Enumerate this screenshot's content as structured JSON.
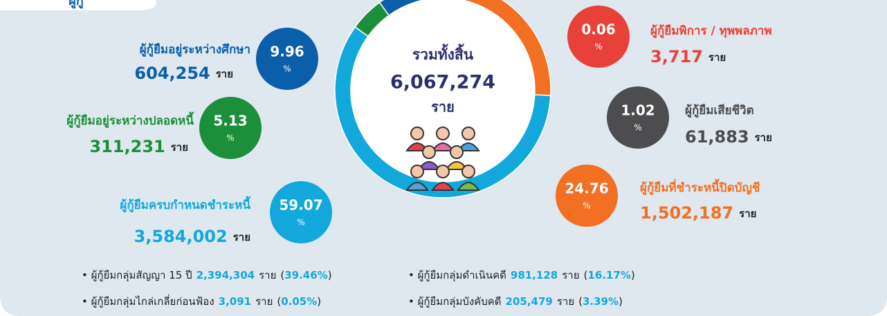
{
  "header": {
    "tab": "ผู้กู้"
  },
  "chart_data": {
    "type": "donut",
    "center_title": "รวมทั้งสิ้น",
    "total": "6,067,274",
    "unit": "ราย",
    "percent_sign": "%",
    "categories": [
      "ผู้กู้ยืมพิการ / ทุพพลภาพ",
      "ผู้กู้ยืมเสียชีวิต",
      "ผู้กู้ยืมที่ชำระหนี้ปิดบัญชี",
      "ผู้กู้ยืมครบกำหนดชำระหนี้",
      "ผู้กู้ยืมอยู่ระหว่างปลอดหนี้",
      "ผู้กู้ยืมอยู่ระหว่างศึกษา"
    ],
    "values": [
      0.06,
      1.02,
      24.76,
      59.07,
      5.13,
      9.96
    ],
    "count_labels": [
      "3,717",
      "61,883",
      "1,502,187",
      "3,584,002",
      "311,231",
      "604,254"
    ],
    "colors": [
      "#d7322e",
      "#4d4d4f",
      "#f36f21",
      "#12a8dc",
      "#1b8f3a",
      "#0b5eaa"
    ]
  },
  "notes": [
    {
      "label": "ผู้กู้ยืมกลุ่มสัญญา 15 ปี",
      "count": "2,394,304",
      "unit": "ราย",
      "percent": "39.46%"
    },
    {
      "label": "ผู้กู้ยืมกลุ่มดำเนินคดี",
      "count": "981,128",
      "unit": "ราย",
      "percent": "16.17%"
    },
    {
      "label": "ผู้กู้ยืมกลุ่มไกล่เกลี่ยก่อนฟ้อง",
      "count": "3,091",
      "unit": "ราย",
      "percent": "0.05%"
    },
    {
      "label": "ผู้กู้ยืมกลุ่มบังคับคดี",
      "count": "205,479",
      "unit": "ราย",
      "percent": "3.39%"
    }
  ]
}
